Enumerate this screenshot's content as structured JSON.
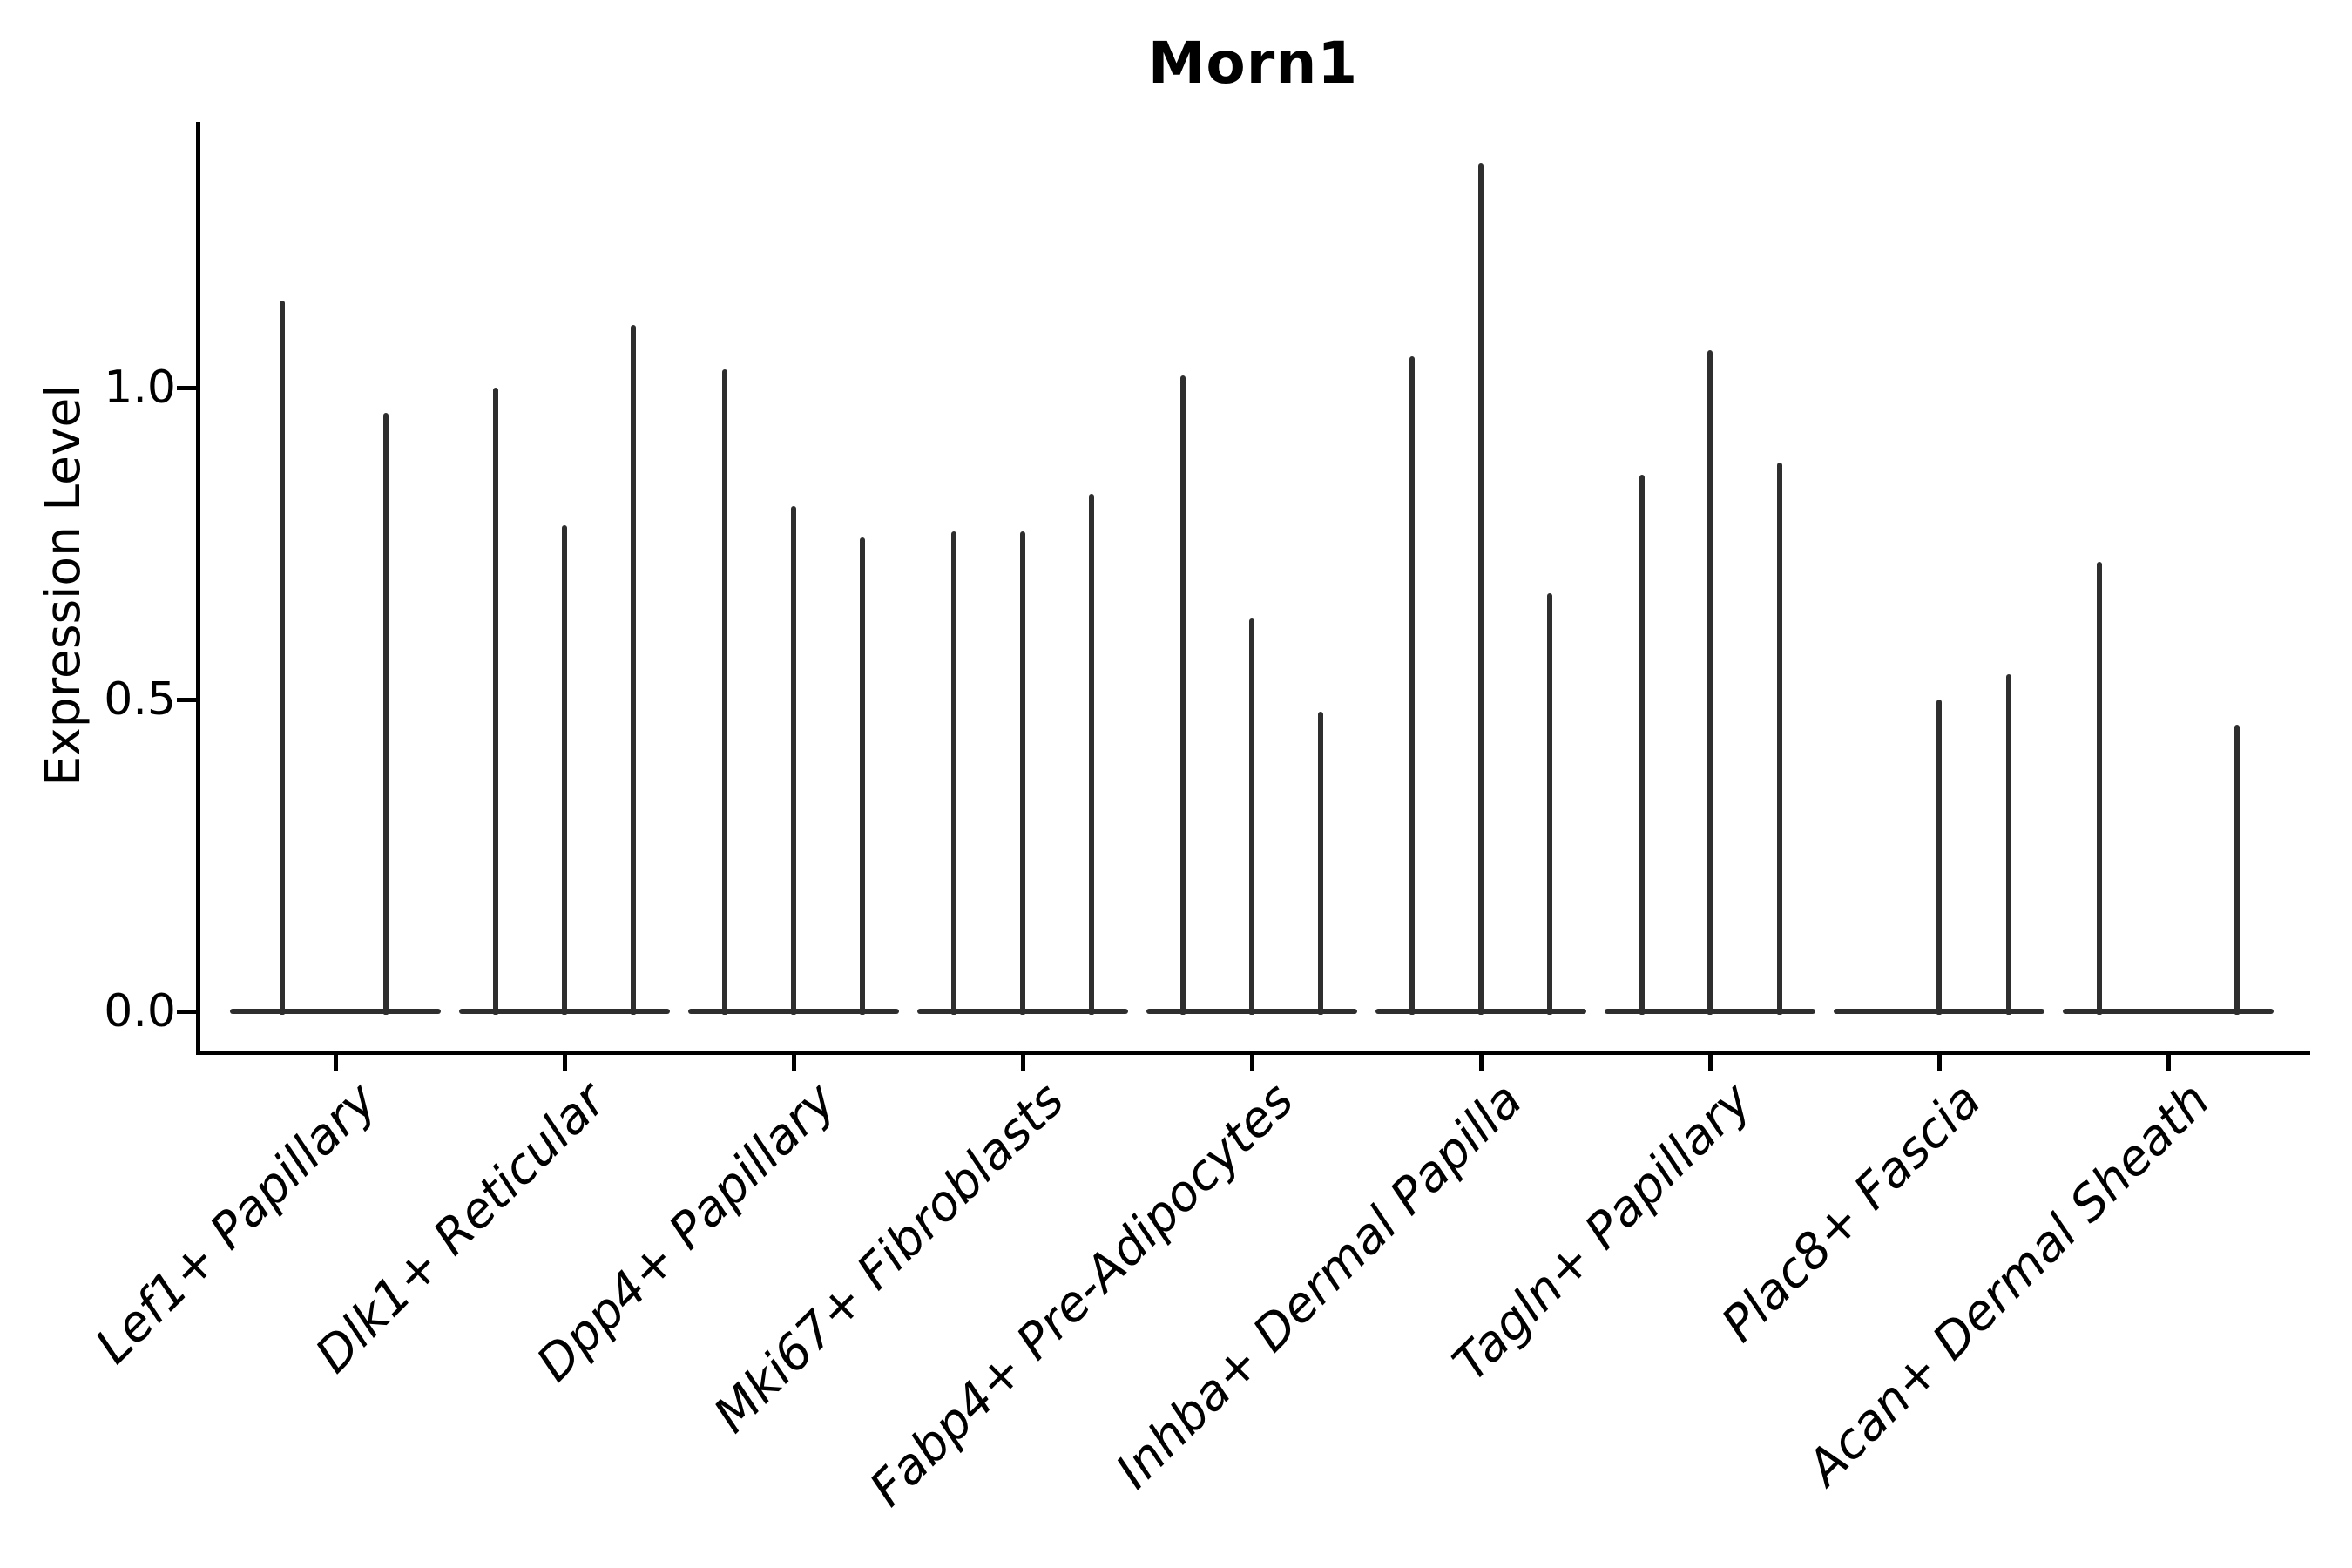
{
  "title": "Morn1",
  "y_axis": {
    "label": "Expression Level",
    "tick_labels": [
      "0.0",
      "0.5",
      "1.0"
    ]
  },
  "colors": {
    "violin": "#2e2e2e",
    "axis": "#000000",
    "text": "#000000",
    "background": "#ffffff"
  },
  "chart_data": {
    "type": "violin",
    "title": "Morn1",
    "xlabel": "",
    "ylabel": "Expression Level",
    "yticks": [
      0.0,
      0.5,
      1.0
    ],
    "ytick_labels": [
      "0.0",
      "0.5",
      "1.0"
    ],
    "ylim": [
      -0.07,
      1.43
    ],
    "grid": false,
    "legend": false,
    "description": "Collapsed violin plot of Morn1 expression; each category shows flat violins at 0 with thin spikes reaching the maximum expression value. dx is the horizontal offset (px) of each spike from the category center.",
    "categories": [
      "Lef1+ Papillary",
      "Dlk1+ Reticular",
      "Dpp4+ Papillary",
      "Mki67+ Fibroblasts",
      "Fabp4+ Pre-Adipocytes",
      "Inhba+ Dermal Papilla",
      "Tagln+ Papillary",
      "Plac8+ Fascia",
      "Acan+ Dermal Sheath"
    ],
    "violins": [
      {
        "category": "Lef1+ Papillary",
        "spikes": [
          {
            "dx": -61,
            "max": 1.14
          },
          {
            "dx": 58,
            "max": 0.96
          }
        ]
      },
      {
        "category": "Dlk1+ Reticular",
        "spikes": [
          {
            "dx": -79,
            "max": 1.0
          },
          {
            "dx": 0,
            "max": 0.78
          },
          {
            "dx": 79,
            "max": 1.1
          }
        ]
      },
      {
        "category": "Dpp4+ Papillary",
        "spikes": [
          {
            "dx": -79,
            "max": 1.03
          },
          {
            "dx": 0,
            "max": 0.81
          },
          {
            "dx": 79,
            "max": 0.76
          }
        ]
      },
      {
        "category": "Mki67+ Fibroblasts",
        "spikes": [
          {
            "dx": -79,
            "max": 0.77
          },
          {
            "dx": 0,
            "max": 0.77
          },
          {
            "dx": 79,
            "max": 0.83
          }
        ]
      },
      {
        "category": "Fabp4+ Pre-Adipocytes",
        "spikes": [
          {
            "dx": -79,
            "max": 1.02
          },
          {
            "dx": 0,
            "max": 0.63
          },
          {
            "dx": 79,
            "max": 0.48
          }
        ]
      },
      {
        "category": "Inhba+ Dermal Papilla",
        "spikes": [
          {
            "dx": -79,
            "max": 1.05
          },
          {
            "dx": 0,
            "max": 1.36
          },
          {
            "dx": 79,
            "max": 0.67
          }
        ]
      },
      {
        "category": "Tagln+ Papillary",
        "spikes": [
          {
            "dx": -78,
            "max": 0.86
          },
          {
            "dx": 0,
            "max": 1.06
          },
          {
            "dx": 80,
            "max": 0.88
          }
        ]
      },
      {
        "category": "Plac8+ Fascia",
        "spikes": [
          {
            "dx": 0,
            "max": 0.5
          },
          {
            "dx": 80,
            "max": 0.54
          }
        ]
      },
      {
        "category": "Acan+ Dermal Sheath",
        "spikes": [
          {
            "dx": -79,
            "max": 0.72
          },
          {
            "dx": 79,
            "max": 0.46
          }
        ]
      }
    ]
  }
}
